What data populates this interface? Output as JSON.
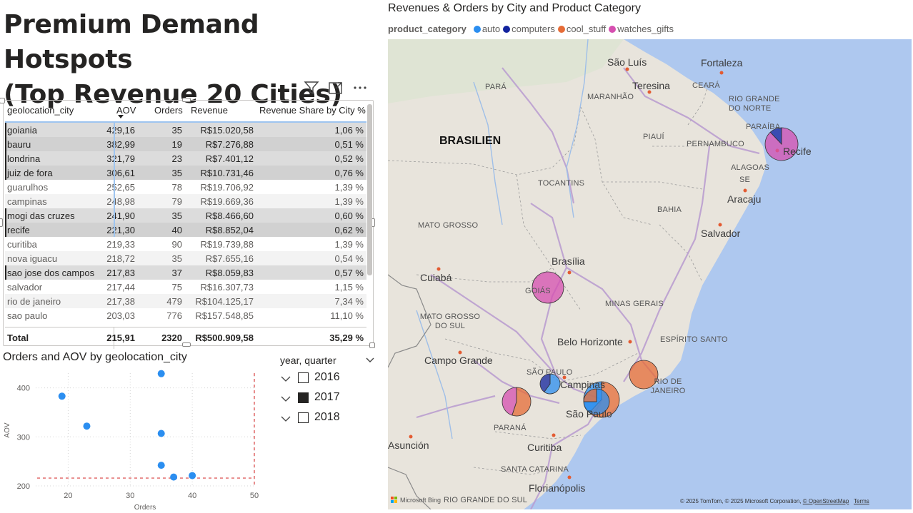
{
  "page": {
    "title_line1": "Premium Demand Hotspots",
    "title_line2": "(Top Revenue 20 Cities)"
  },
  "visual_header": {
    "icons": [
      "filter-icon",
      "focus-mode-icon",
      "more-options-icon"
    ]
  },
  "table": {
    "columns": [
      "geolocation_city",
      "AOV",
      "Orders",
      "Revenue",
      "Revenue Share by City %"
    ],
    "rows": [
      {
        "city": "goiania",
        "aov": "429,16",
        "orders": "35",
        "revenue": "R$15.020,58",
        "share": "1,06 %",
        "selected": true
      },
      {
        "city": "bauru",
        "aov": "382,99",
        "orders": "19",
        "revenue": "R$7.276,88",
        "share": "0,51 %",
        "selected": true
      },
      {
        "city": "londrina",
        "aov": "321,79",
        "orders": "23",
        "revenue": "R$7.401,12",
        "share": "0,52 %",
        "selected": true
      },
      {
        "city": "juiz de fora",
        "aov": "306,61",
        "orders": "35",
        "revenue": "R$10.731,46",
        "share": "0,76 %",
        "selected": true
      },
      {
        "city": "guarulhos",
        "aov": "252,65",
        "orders": "78",
        "revenue": "R$19.706,92",
        "share": "1,39 %",
        "selected": false
      },
      {
        "city": "campinas",
        "aov": "248,98",
        "orders": "79",
        "revenue": "R$19.669,36",
        "share": "1,39 %",
        "selected": false
      },
      {
        "city": "mogi das cruzes",
        "aov": "241,90",
        "orders": "35",
        "revenue": "R$8.466,60",
        "share": "0,60 %",
        "selected": true
      },
      {
        "city": "recife",
        "aov": "221,30",
        "orders": "40",
        "revenue": "R$8.852,04",
        "share": "0,62 %",
        "selected": true
      },
      {
        "city": "curitiba",
        "aov": "219,33",
        "orders": "90",
        "revenue": "R$19.739,88",
        "share": "1,39 %",
        "selected": false
      },
      {
        "city": "nova iguacu",
        "aov": "218,72",
        "orders": "35",
        "revenue": "R$7.655,16",
        "share": "0,54 %",
        "selected": false
      },
      {
        "city": "sao jose dos campos",
        "aov": "217,83",
        "orders": "37",
        "revenue": "R$8.059,83",
        "share": "0,57 %",
        "selected": true
      },
      {
        "city": "salvador",
        "aov": "217,44",
        "orders": "75",
        "revenue": "R$16.307,73",
        "share": "1,15 %",
        "selected": false
      },
      {
        "city": "rio de janeiro",
        "aov": "217,38",
        "orders": "479",
        "revenue": "R$104.125,17",
        "share": "7,34 %",
        "selected": false
      },
      {
        "city": "sao paulo",
        "aov": "203,03",
        "orders": "776",
        "revenue": "R$157.548,85",
        "share": "11,10 %",
        "selected": false
      }
    ],
    "total": {
      "label": "Total",
      "aov": "215,91",
      "orders": "2320",
      "revenue": "R$500.909,58",
      "share": "35,29 %"
    }
  },
  "scatter": {
    "title": "Orders and AOV by geolocation_city",
    "color": "#2b8ef0",
    "refline_color": "#e88d8d"
  },
  "chart_data": {
    "type": "scatter",
    "title": "Orders and AOV by geolocation_city",
    "xlabel": "Orders",
    "ylabel": "AOV",
    "xlim": [
      15,
      50
    ],
    "ylim": [
      200,
      430
    ],
    "x_ticks": [
      "20",
      "30",
      "40",
      "50"
    ],
    "y_ticks": [
      "200",
      "300",
      "400"
    ],
    "points": [
      {
        "x": 35,
        "y": 429
      },
      {
        "x": 19,
        "y": 383
      },
      {
        "x": 23,
        "y": 322
      },
      {
        "x": 35,
        "y": 307
      },
      {
        "x": 35,
        "y": 242
      },
      {
        "x": 40,
        "y": 221
      },
      {
        "x": 37,
        "y": 218
      }
    ],
    "reference_x": 50,
    "reference_y": 215.91
  },
  "slicer": {
    "title": "year, quarter",
    "items": [
      {
        "label": "2016",
        "checked": false
      },
      {
        "label": "2017",
        "checked": true
      },
      {
        "label": "2018",
        "checked": false
      }
    ]
  },
  "map": {
    "title": "Revenues & Orders by City and Product Category",
    "legend_title": "product_category",
    "legend": [
      {
        "label": "auto",
        "color": "#2b8ef0"
      },
      {
        "label": "computers",
        "color": "#12239e"
      },
      {
        "label": "cool_stuff",
        "color": "#e66c37"
      },
      {
        "label": "watches_gifts",
        "color": "#d64fb0"
      }
    ],
    "labels": {
      "country": "BRASILIEN",
      "cities": [
        "São Luís",
        "Fortaleza",
        "Teresina",
        "Recife",
        "Aracaju",
        "Salvador",
        "Brasília",
        "Cuiabá",
        "Belo Horizonte",
        "Campo Grande",
        "Campinas",
        "São Paulo",
        "Curitiba",
        "Asunción",
        "Florianópolis"
      ],
      "states": [
        "PARÁ",
        "MARANHÃO",
        "CEARÁ",
        "RIO GRANDE DO NORTE",
        "PARAÍBA",
        "PIAUÍ",
        "PERNAMBUCO",
        "ALAGOAS",
        "SE",
        "TOCANTINS",
        "BAHIA",
        "MATO GROSSO",
        "GOIÁS",
        "MINAS GERAIS",
        "MATO GROSSO DO SUL",
        "ESPÍRITO SANTO",
        "SÃO PAULO",
        "RIO DE JANEIRO",
        "PARANÁ",
        "SANTA CATARINA",
        "RIO GRANDE DO SUL"
      ]
    },
    "attribution": "© 2025 TomTom, © 2025 Microsoft Corporation,",
    "attribution_link": "© OpenStreetMap",
    "terms": "Terms",
    "bing_label": "Microsoft Bing"
  }
}
